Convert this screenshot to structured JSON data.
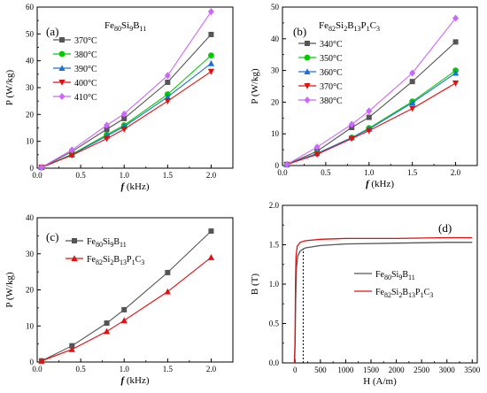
{
  "chart_data": [
    {
      "panel": "(a)",
      "type": "line",
      "title": "Fe80Si9B11",
      "title_parts": [
        [
          "Fe",
          false
        ],
        [
          "80",
          true
        ],
        [
          "Si",
          false
        ],
        [
          "9",
          true
        ],
        [
          "B",
          false
        ],
        [
          "11",
          true
        ]
      ],
      "xlabel": "f (kHz)",
      "ylabel": "P (W/kg)",
      "xlim": [
        0,
        2.25
      ],
      "ylim": [
        0,
        60
      ],
      "xticks": [
        0.0,
        0.5,
        1.0,
        1.5,
        2.0
      ],
      "xtick_labels": [
        "0.0",
        "0.5",
        "1.0",
        "1.5",
        "2.0"
      ],
      "yticks": [
        0,
        10,
        20,
        30,
        40,
        50,
        60
      ],
      "ytick_labels": [
        "0",
        "10",
        "20",
        "30",
        "40",
        "50",
        "60"
      ],
      "grid": false,
      "legend_position": "top-left",
      "x": [
        0.05,
        0.4,
        0.8,
        1.0,
        1.5,
        2.0
      ],
      "series": [
        {
          "name": "370°C",
          "color": "#555555",
          "marker": "square",
          "values": [
            0.3,
            6.2,
            14.5,
            18.5,
            32.0,
            49.8
          ]
        },
        {
          "name": "380°C",
          "color": "#00cc00",
          "marker": "circle",
          "values": [
            0.3,
            5.2,
            12.5,
            16.0,
            27.5,
            42.0
          ]
        },
        {
          "name": "390°C",
          "color": "#1f6fd6",
          "marker": "triangle-up",
          "values": [
            0.3,
            5.0,
            12.0,
            15.5,
            26.5,
            39.0
          ]
        },
        {
          "name": "400°C",
          "color": "#e01010",
          "marker": "triangle-down",
          "values": [
            0.3,
            4.8,
            11.0,
            14.5,
            25.0,
            36.0
          ]
        },
        {
          "name": "410°C",
          "color": "#cc66ff",
          "marker": "diamond",
          "values": [
            0.3,
            6.8,
            16.0,
            20.2,
            34.5,
            58.3
          ]
        }
      ]
    },
    {
      "panel": "(b)",
      "type": "line",
      "title": "Fe82Si2B13P1C3",
      "title_parts": [
        [
          "Fe",
          false
        ],
        [
          "82",
          true
        ],
        [
          "Si",
          false
        ],
        [
          "2",
          true
        ],
        [
          "B",
          false
        ],
        [
          "13",
          true
        ],
        [
          "P",
          false
        ],
        [
          "1",
          true
        ],
        [
          "C",
          false
        ],
        [
          "3",
          true
        ]
      ],
      "xlabel": "f (kHz)",
      "ylabel": "P (W/kg)",
      "xlim": [
        0,
        2.25
      ],
      "ylim": [
        0,
        50
      ],
      "xticks": [
        0.0,
        0.5,
        1.0,
        1.5,
        2.0
      ],
      "xtick_labels": [
        "0.0",
        "0.5",
        "1.0",
        "1.5",
        "2.0"
      ],
      "yticks": [
        0,
        10,
        20,
        30,
        40,
        50
      ],
      "ytick_labels": [
        "0",
        "10",
        "20",
        "30",
        "40",
        "50"
      ],
      "grid": false,
      "legend_position": "top-left",
      "x": [
        0.05,
        0.4,
        0.8,
        1.0,
        1.5,
        2.0
      ],
      "series": [
        {
          "name": "340°C",
          "color": "#555555",
          "marker": "square",
          "values": [
            0.3,
            4.5,
            12.0,
            15.2,
            26.5,
            39.0
          ]
        },
        {
          "name": "350°C",
          "color": "#00cc00",
          "marker": "circle",
          "values": [
            0.3,
            3.8,
            8.8,
            11.8,
            20.2,
            30.0
          ]
        },
        {
          "name": "360°C",
          "color": "#1f6fd6",
          "marker": "triangle-up",
          "values": [
            0.3,
            3.8,
            8.8,
            11.5,
            19.8,
            29.2
          ]
        },
        {
          "name": "370°C",
          "color": "#e01010",
          "marker": "triangle-down",
          "values": [
            0.3,
            3.5,
            8.5,
            11.0,
            18.0,
            26.0
          ]
        },
        {
          "name": "380°C",
          "color": "#cc66ff",
          "marker": "diamond",
          "values": [
            0.3,
            5.8,
            13.0,
            17.2,
            29.2,
            46.5
          ]
        }
      ]
    },
    {
      "panel": "(c)",
      "type": "line",
      "title": "",
      "xlabel": "f (kHz)",
      "ylabel": "P (W/kg)",
      "xlim": [
        0,
        2.25
      ],
      "ylim": [
        0,
        40
      ],
      "xticks": [
        0.0,
        0.5,
        1.0,
        1.5,
        2.0
      ],
      "xtick_labels": [
        "0.0",
        "0.5",
        "1.0",
        "1.5",
        "2.0"
      ],
      "yticks": [
        0,
        10,
        20,
        30,
        40
      ],
      "ytick_labels": [
        "0",
        "10",
        "20",
        "30",
        "40"
      ],
      "grid": false,
      "legend_position": "top-left",
      "x": [
        0.05,
        0.4,
        0.8,
        1.0,
        1.5,
        2.0
      ],
      "series": [
        {
          "name": "Fe80Si9B11",
          "name_parts": [
            [
              "Fe",
              false
            ],
            [
              "80",
              true
            ],
            [
              "Si",
              false
            ],
            [
              "9",
              true
            ],
            [
              "B",
              false
            ],
            [
              "11",
              true
            ]
          ],
          "color": "#555555",
          "marker": "square",
          "values": [
            0.3,
            4.5,
            10.8,
            14.5,
            24.8,
            36.3
          ]
        },
        {
          "name": "Fe82Si2B13P1C3",
          "name_parts": [
            [
              "Fe",
              false
            ],
            [
              "82",
              true
            ],
            [
              "Si",
              false
            ],
            [
              "2",
              true
            ],
            [
              "B",
              false
            ],
            [
              "13",
              true
            ],
            [
              "P",
              false
            ],
            [
              "1",
              true
            ],
            [
              "C",
              false
            ],
            [
              "3",
              true
            ]
          ],
          "color": "#e01010",
          "marker": "triangle-up",
          "values": [
            0.3,
            3.5,
            8.5,
            11.5,
            19.5,
            29.0
          ]
        }
      ]
    },
    {
      "panel": "(d)",
      "type": "line",
      "title": "",
      "xlabel": "H (A/m)",
      "ylabel": "B (T)",
      "xlim": [
        -250,
        3600
      ],
      "ylim": [
        0,
        2.0
      ],
      "xticks": [
        0,
        500,
        1000,
        1500,
        2000,
        2500,
        3000,
        3500
      ],
      "xtick_labels": [
        "0",
        "500",
        "1000",
        "1500",
        "2000",
        "2500",
        "3000",
        "3500"
      ],
      "yticks": [
        0.0,
        0.5,
        1.0,
        1.5,
        2.0
      ],
      "ytick_labels": [
        "0.0",
        "0.5",
        "1.0",
        "1.5",
        "2.0"
      ],
      "grid": false,
      "legend_position": "right",
      "reference_line_x": 160,
      "series": [
        {
          "name": "Fe80Si9B11",
          "name_parts": [
            [
              "Fe",
              false
            ],
            [
              "80",
              true
            ],
            [
              "Si",
              false
            ],
            [
              "9",
              true
            ],
            [
              "B",
              false
            ],
            [
              "11",
              true
            ]
          ],
          "color": "#555555",
          "points": [
            [
              -15,
              0
            ],
            [
              0,
              0.25
            ],
            [
              10,
              0.8
            ],
            [
              25,
              1.2
            ],
            [
              50,
              1.35
            ],
            [
              100,
              1.42
            ],
            [
              200,
              1.46
            ],
            [
              500,
              1.49
            ],
            [
              1000,
              1.51
            ],
            [
              2000,
              1.52
            ],
            [
              3000,
              1.53
            ],
            [
              3500,
              1.53
            ]
          ]
        },
        {
          "name": "Fe82Si2B13P1C3",
          "name_parts": [
            [
              "Fe",
              false
            ],
            [
              "82",
              true
            ],
            [
              "Si",
              false
            ],
            [
              "2",
              true
            ],
            [
              "B",
              false
            ],
            [
              "13",
              true
            ],
            [
              "P",
              false
            ],
            [
              "1",
              true
            ],
            [
              "C",
              false
            ],
            [
              "3",
              true
            ]
          ],
          "color": "#e01010",
          "points": [
            [
              -8,
              0
            ],
            [
              0,
              0.4
            ],
            [
              8,
              1.0
            ],
            [
              18,
              1.35
            ],
            [
              40,
              1.48
            ],
            [
              100,
              1.53
            ],
            [
              200,
              1.55
            ],
            [
              500,
              1.57
            ],
            [
              1000,
              1.58
            ],
            [
              2000,
              1.58
            ],
            [
              3000,
              1.59
            ],
            [
              3500,
              1.59
            ]
          ]
        }
      ]
    }
  ]
}
